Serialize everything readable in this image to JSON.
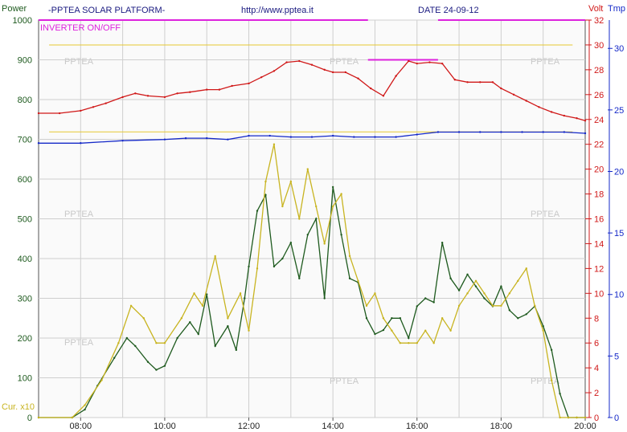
{
  "header": {
    "brand": "-PPTEA SOLAR PLATFORM-",
    "url": "http://www.pptea.it",
    "date": "DATE 24-09-12"
  },
  "chart_data": {
    "type": "line",
    "axes": {
      "left_title": "Power",
      "left_ticks": [
        "1000",
        "900",
        "800",
        "700",
        "600",
        "500",
        "400",
        "300",
        "200",
        "100",
        "0"
      ],
      "left_range": [
        0,
        1000
      ],
      "volt_title": "Volt",
      "volt_ticks": [
        "32",
        "30",
        "28",
        "26",
        "24",
        "22",
        "20",
        "18",
        "16",
        "14",
        "12",
        "10",
        "8",
        "6",
        "4",
        "2",
        "0"
      ],
      "volt_range": [
        0,
        32
      ],
      "tmp_title": "Tmp",
      "tmp_ticks": [
        "30",
        "25",
        "20",
        "15",
        "10",
        "5",
        "0"
      ],
      "tmp_range": [
        0,
        32.3
      ],
      "x_ticks": [
        "08:00",
        "10:00",
        "12:00",
        "14:00",
        "16:00",
        "18:00",
        "20:00"
      ],
      "x_range": [
        "07:00",
        "20:00"
      ]
    },
    "labels": {
      "inverter": "INVERTER ON/OFF",
      "current_scale": "Cur. x10",
      "watermark": "PPTEA"
    },
    "series": [
      {
        "name": "Power",
        "color": "#1e5a1e",
        "x": [
          7.0,
          7.8,
          8.1,
          8.4,
          8.8,
          9.1,
          9.3,
          9.6,
          9.8,
          10.0,
          10.3,
          10.6,
          10.8,
          11.0,
          11.2,
          11.5,
          11.7,
          11.9,
          12.0,
          12.2,
          12.4,
          12.6,
          12.8,
          13.0,
          13.2,
          13.4,
          13.6,
          13.8,
          14.0,
          14.2,
          14.4,
          14.6,
          14.8,
          15.0,
          15.2,
          15.4,
          15.6,
          15.8,
          16.0,
          16.2,
          16.4,
          16.6,
          16.8,
          17.0,
          17.2,
          17.4,
          17.6,
          17.8,
          18.0,
          18.2,
          18.4,
          18.6,
          18.8,
          19.0,
          19.2,
          19.4,
          19.6,
          19.8,
          20.0
        ],
        "y": [
          0,
          0,
          20,
          80,
          150,
          200,
          180,
          140,
          120,
          130,
          200,
          240,
          210,
          310,
          180,
          230,
          170,
          300,
          380,
          520,
          560,
          380,
          400,
          440,
          350,
          460,
          500,
          300,
          580,
          460,
          350,
          340,
          250,
          210,
          220,
          250,
          250,
          200,
          280,
          300,
          290,
          440,
          350,
          320,
          360,
          330,
          300,
          280,
          330,
          270,
          250,
          260,
          280,
          230,
          170,
          60,
          0,
          0,
          0
        ]
      },
      {
        "name": "Voltage",
        "color": "#d01818",
        "x": [
          7.0,
          7.5,
          8.0,
          8.3,
          8.6,
          9.0,
          9.3,
          9.6,
          10.0,
          10.3,
          10.6,
          11.0,
          11.3,
          11.6,
          12.0,
          12.3,
          12.6,
          12.9,
          13.2,
          13.5,
          13.8,
          14.0,
          14.3,
          14.6,
          14.9,
          15.2,
          15.5,
          15.8,
          16.0,
          16.3,
          16.6,
          16.9,
          17.2,
          17.5,
          17.8,
          18.0,
          18.3,
          18.6,
          18.9,
          19.2,
          19.5,
          19.8,
          20.0
        ],
        "y": [
          24.5,
          24.5,
          24.7,
          25.0,
          25.3,
          25.8,
          26.1,
          25.9,
          25.8,
          26.1,
          26.2,
          26.4,
          26.4,
          26.7,
          26.9,
          27.4,
          27.9,
          28.6,
          28.7,
          28.4,
          28.0,
          27.8,
          27.8,
          27.3,
          26.5,
          25.9,
          27.5,
          28.7,
          28.5,
          28.6,
          28.5,
          27.2,
          27.0,
          27.0,
          27.0,
          26.5,
          26.0,
          25.5,
          25.0,
          24.6,
          24.3,
          24.1,
          23.9
        ]
      },
      {
        "name": "Current",
        "color": "#c8b420",
        "x": [
          7.0,
          7.8,
          8.1,
          8.5,
          8.9,
          9.2,
          9.5,
          9.8,
          10.0,
          10.4,
          10.7,
          10.9,
          11.2,
          11.5,
          11.8,
          12.0,
          12.2,
          12.4,
          12.6,
          12.8,
          13.0,
          13.2,
          13.4,
          13.6,
          13.8,
          14.0,
          14.2,
          14.4,
          14.6,
          14.8,
          15.0,
          15.2,
          15.4,
          15.6,
          15.8,
          16.0,
          16.2,
          16.4,
          16.6,
          16.8,
          17.0,
          17.2,
          17.4,
          17.6,
          17.8,
          18.0,
          18.2,
          18.4,
          18.6,
          18.8,
          19.0,
          19.2,
          19.4,
          19.6,
          19.8,
          20.0
        ],
        "y": [
          0,
          0,
          1,
          3,
          6,
          9,
          8,
          6,
          6,
          8,
          10,
          9,
          13,
          8,
          10,
          7,
          12,
          19,
          22,
          17,
          19,
          16,
          20,
          17,
          14,
          17,
          18,
          13,
          11,
          9,
          10,
          8,
          7,
          6,
          6,
          6,
          7,
          6,
          8,
          7,
          9,
          10,
          11,
          10,
          9,
          9,
          10,
          11,
          12,
          9,
          7,
          3,
          0,
          0,
          0,
          0
        ]
      },
      {
        "name": "Temperature",
        "color": "#1428c8",
        "x": [
          7.0,
          8.0,
          9.0,
          10.0,
          10.5,
          11.0,
          11.5,
          12.0,
          12.5,
          13.0,
          13.5,
          14.0,
          14.5,
          15.0,
          15.5,
          16.0,
          16.5,
          17.0,
          17.5,
          18.0,
          18.5,
          19.0,
          19.5,
          20.0
        ],
        "y": [
          22.3,
          22.3,
          22.5,
          22.6,
          22.7,
          22.7,
          22.6,
          22.9,
          22.9,
          22.8,
          22.8,
          22.9,
          22.8,
          22.8,
          22.8,
          23.0,
          23.2,
          23.2,
          23.2,
          23.2,
          23.2,
          23.2,
          23.2,
          23.1
        ]
      }
    ],
    "reference_lines": [
      {
        "axis": "volt",
        "value": 30,
        "color": "#e6c832"
      },
      {
        "axis": "volt",
        "value": 23,
        "color": "#e6c832"
      }
    ],
    "inverter_bars": [
      {
        "from": "07:00",
        "to": "14:50",
        "value": 32,
        "color": "#dd22dd"
      },
      {
        "from": "16:30",
        "to": "20:00",
        "value": 32,
        "color": "#dd22dd"
      },
      {
        "from": "14:50",
        "to": "16:30",
        "value": 28.8,
        "color": "#dd22dd"
      }
    ],
    "grid": true
  }
}
